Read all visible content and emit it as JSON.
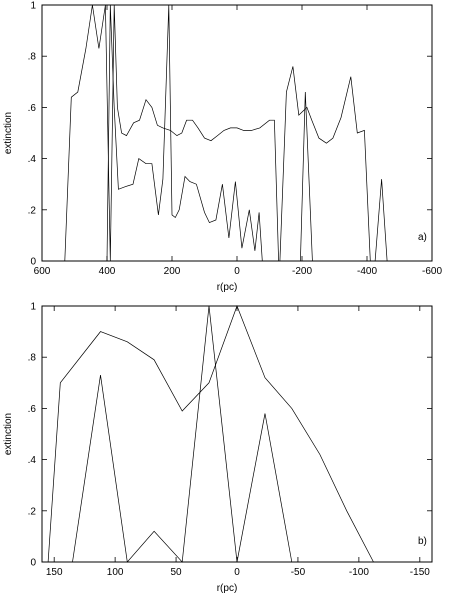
{
  "chart_data": [
    {
      "type": "line",
      "panel_label": "a)",
      "xlabel": "r(pc)",
      "ylabel": "extinction",
      "xlim": [
        600,
        -600
      ],
      "ylim": [
        0,
        1
      ],
      "x_ticks": [
        600,
        400,
        200,
        0,
        -200,
        -400,
        -600
      ],
      "x_tick_labels": [
        "600",
        "400",
        "200",
        "0",
        "-200",
        "-400",
        "-600"
      ],
      "y_ticks": [
        0,
        0.2,
        0.4,
        0.6,
        0.8,
        1
      ],
      "y_tick_labels": [
        "0",
        ".2",
        ".4",
        ".6",
        ".8",
        "1"
      ],
      "grid": false,
      "series": [
        {
          "x": [
            530,
            510,
            490,
            465,
            445,
            425,
            405,
            390,
            378,
            368,
            355,
            340,
            318,
            300,
            280,
            262,
            245,
            228,
            205,
            185,
            170,
            155,
            137,
            120,
            100,
            80,
            60,
            40,
            20,
            0,
            -20,
            -45,
            -70,
            -100,
            -115,
            -128,
            -132,
            -152,
            -172,
            -190,
            -215,
            -230,
            -252,
            -275,
            -295,
            -320,
            -350,
            -370,
            -392,
            -410,
            -425,
            -445,
            -462,
            -475
          ],
          "y": [
            0,
            0.64,
            0.66,
            0.83,
            1.0,
            0.83,
            1.0,
            0,
            1.0,
            0.6,
            0.5,
            0.49,
            0.54,
            0.55,
            0.63,
            0.6,
            0.53,
            0.52,
            0.51,
            0.49,
            0.5,
            0.55,
            0.55,
            0.52,
            0.48,
            0.47,
            0.49,
            0.51,
            0.52,
            0.52,
            0.51,
            0.51,
            0.52,
            0.55,
            0.55,
            0.0,
            0.0,
            0.66,
            0.76,
            0.57,
            0.6,
            0.55,
            0.48,
            0.46,
            0.48,
            0.56,
            0.72,
            0.5,
            0.51,
            0.0,
            0.0,
            0.32,
            0.0,
            0.0
          ]
        },
        {
          "x": [
            400,
            390,
            378,
            365,
            345,
            320,
            302,
            280,
            262,
            242,
            228,
            210,
            200,
            190,
            178,
            160,
            145,
            125,
            100,
            85,
            65,
            45,
            25,
            5,
            -15,
            -38,
            -55,
            -68,
            -78,
            -88,
            -100,
            -120,
            -128,
            -195,
            -210,
            -222,
            -232
          ],
          "y": [
            0,
            1.0,
            0.6,
            0.28,
            0.29,
            0.3,
            0.4,
            0.38,
            0.38,
            0.18,
            0.32,
            1.0,
            0.18,
            0.17,
            0.2,
            0.33,
            0.31,
            0.3,
            0.19,
            0.15,
            0.16,
            0.3,
            0.09,
            0.31,
            0.05,
            0.2,
            0.04,
            0.19,
            0.0,
            0.0,
            0.0,
            0.0,
            0.0,
            0.0,
            0.66,
            0.3,
            0.0
          ]
        }
      ]
    },
    {
      "type": "line",
      "panel_label": "b)",
      "xlabel": "r(pc)",
      "ylabel": "extinction",
      "xlim": [
        160,
        -160
      ],
      "ylim": [
        0,
        1
      ],
      "x_ticks": [
        150,
        100,
        50,
        0,
        -50,
        -100,
        -150
      ],
      "x_tick_labels": [
        "150",
        "100",
        "50",
        "0",
        "-50",
        "-100",
        "-150"
      ],
      "y_ticks": [
        0,
        0.2,
        0.4,
        0.6,
        0.8,
        1
      ],
      "y_tick_labels": [
        "0",
        ".2",
        ".4",
        ".6",
        ".8",
        "1"
      ],
      "grid": false,
      "series": [
        {
          "x": [
            155,
            145,
            112,
            90,
            68,
            45,
            23,
            0,
            -23,
            -45,
            -68,
            -90,
            -112
          ],
          "y": [
            0,
            0.7,
            0.9,
            0.86,
            0.79,
            0.59,
            0.7,
            1.0,
            0.72,
            0.6,
            0.42,
            0.2,
            0.0
          ]
        },
        {
          "x": [
            135,
            112,
            90,
            68,
            45,
            23,
            0,
            -23,
            -45
          ],
          "y": [
            0,
            0.73,
            0,
            0.12,
            0,
            1.0,
            0,
            0.58,
            0
          ]
        }
      ]
    }
  ]
}
